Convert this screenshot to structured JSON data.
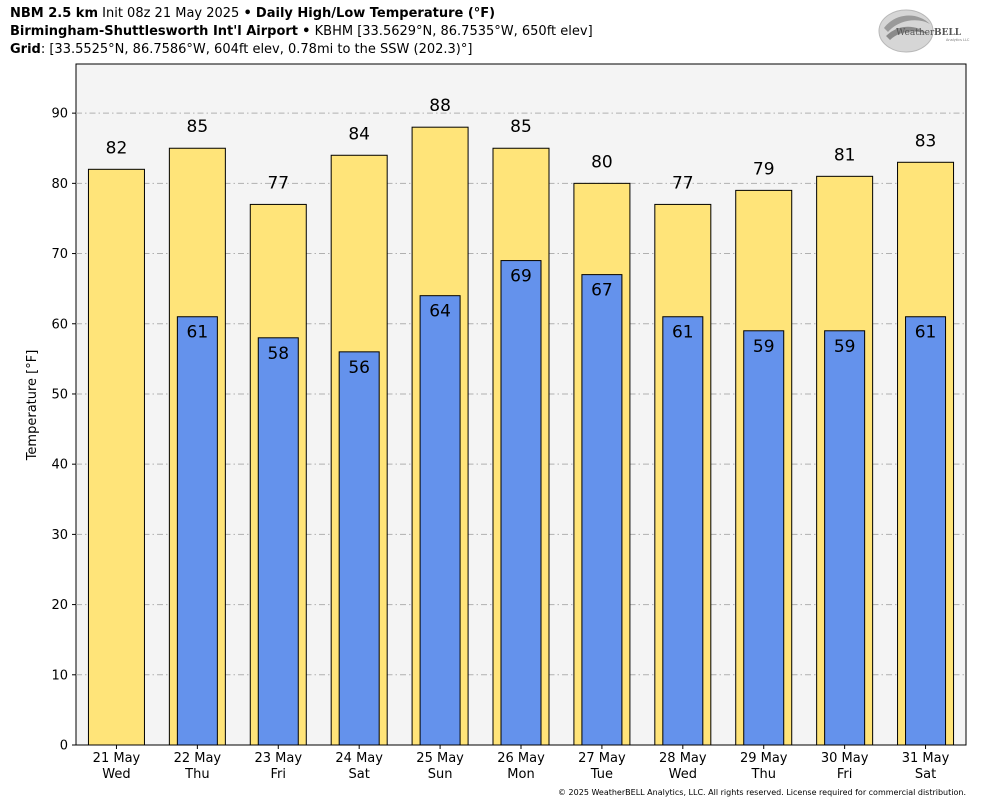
{
  "header": {
    "model": "NBM 2.5 km",
    "init": "Init 08z 21 May 2025",
    "bullet": "•",
    "product": "Daily High/Low Temperature (°F)",
    "station_name": "Birmingham-Shuttlesworth Int'l Airport",
    "station_info": "KBHM [33.5629°N, 86.7535°W, 650ft elev]",
    "grid_label": "Grid",
    "grid_info": ": [33.5525°N, 86.7586°W, 604ft elev, 0.78mi to the SSW (202.3)°]"
  },
  "logo": {
    "text_a": "Weather",
    "text_b": "BELL",
    "sub": "Analytics LLC"
  },
  "footer": "© 2025 WeatherBELL Analytics, LLC. All rights reserved. License required for commercial distribution.",
  "chart_data": {
    "type": "bar",
    "ylabel": "Temperature [°F]",
    "xlabel": "",
    "ylim": [
      0,
      97
    ],
    "yticks": [
      0,
      10,
      20,
      30,
      40,
      50,
      60,
      70,
      80,
      90
    ],
    "grid": true,
    "categories": [
      "21 May",
      "22 May",
      "23 May",
      "24 May",
      "25 May",
      "26 May",
      "27 May",
      "28 May",
      "29 May",
      "30 May",
      "31 May"
    ],
    "days": [
      "Wed",
      "Thu",
      "Fri",
      "Sat",
      "Sun",
      "Mon",
      "Tue",
      "Wed",
      "Thu",
      "Fri",
      "Sat"
    ],
    "series": [
      {
        "name": "High",
        "values": [
          82,
          85,
          77,
          84,
          88,
          85,
          80,
          77,
          79,
          81,
          83
        ],
        "color": "#ffe479"
      },
      {
        "name": "Low",
        "values": [
          null,
          61,
          58,
          56,
          64,
          69,
          67,
          61,
          59,
          59,
          61
        ],
        "color": "#6492ec"
      }
    ],
    "high_labels": [
      "82",
      "85",
      "77",
      "84",
      "88",
      "85",
      "80",
      "77",
      "79",
      "81",
      "83"
    ],
    "low_labels": [
      "",
      "61",
      "58",
      "56",
      "64",
      "69",
      "67",
      "61",
      "59",
      "59",
      "61"
    ]
  }
}
